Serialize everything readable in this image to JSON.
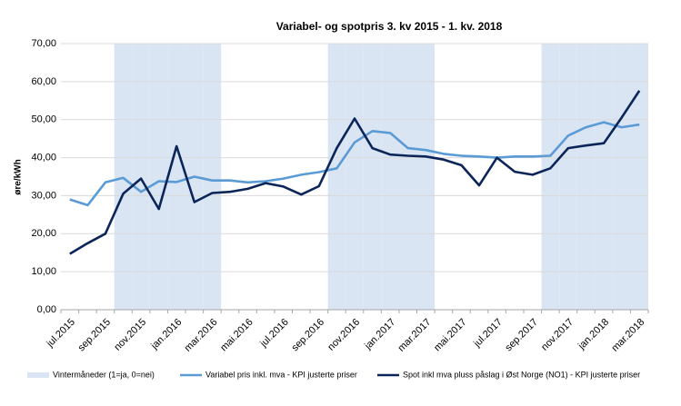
{
  "chart_data": {
    "type": "line",
    "title": "Variabel- og spotpris 3. kv 2015  - 1. kv. 2018",
    "y_label": "øre/kWh",
    "categories": [
      "jul.2015",
      null,
      "sep.2015",
      null,
      "nov.2015",
      null,
      "jan.2016",
      null,
      "mar.2016",
      null,
      "mai.2016",
      null,
      "jul.2016",
      null,
      "sep.2016",
      null,
      "nov.2016",
      null,
      "jan.2017",
      null,
      "mar.2017",
      null,
      "mai.2017",
      null,
      "jul.2017",
      null,
      "sep.2017",
      null,
      "nov.2017",
      null,
      "jan.2018",
      null,
      "mar.2018"
    ],
    "series": [
      {
        "name": "Vintermåneder (1=ja, 0=nei)",
        "type": "bar",
        "axis": "y2",
        "color": "#dae5f4",
        "values": [
          0,
          0,
          0,
          1,
          1,
          1,
          1,
          1,
          1,
          0,
          0,
          0,
          0,
          0,
          0,
          1,
          1,
          1,
          1,
          1,
          1,
          0,
          0,
          0,
          0,
          0,
          0,
          1,
          1,
          1,
          1,
          1,
          1
        ]
      },
      {
        "name": "Variabel pris inkl. mva - KPI justerte priser",
        "type": "line",
        "color": "#5b9bd5",
        "values": [
          29.0,
          27.5,
          33.5,
          34.7,
          31.0,
          33.8,
          33.6,
          35.0,
          34.0,
          34.0,
          33.5,
          33.8,
          34.5,
          35.5,
          36.2,
          37.2,
          44.0,
          47.0,
          46.5,
          42.5,
          42.0,
          41.0,
          40.5,
          40.3,
          40.0,
          40.3,
          40.3,
          40.5,
          45.8,
          48.0,
          49.3,
          48.0,
          48.7
        ]
      },
      {
        "name": "Spot inkl mva pluss påslag i Øst Norge (NO1) - KPI justerte priser",
        "type": "line",
        "color": "#0b2559",
        "values": [
          14.7,
          17.5,
          20.0,
          30.5,
          34.5,
          26.5,
          43.0,
          28.3,
          30.7,
          31.0,
          31.8,
          33.3,
          32.4,
          30.3,
          32.5,
          42.5,
          50.3,
          42.5,
          40.8,
          40.5,
          40.3,
          39.5,
          38.0,
          32.7,
          40.0,
          36.3,
          35.5,
          37.2,
          42.5,
          43.2,
          43.8,
          50.5,
          57.6
        ]
      }
    ],
    "ylim": [
      0,
      70
    ],
    "yticks": [
      {
        "value": 0,
        "label": "0,00"
      },
      {
        "value": 10,
        "label": "10,00"
      },
      {
        "value": 20,
        "label": "20,00"
      },
      {
        "value": 30,
        "label": "30,00"
      },
      {
        "value": 40,
        "label": "40,00"
      },
      {
        "value": 50,
        "label": "50,00"
      },
      {
        "value": 60,
        "label": "60,00"
      },
      {
        "value": 70,
        "label": "70,00"
      }
    ],
    "y2lim": [
      0,
      1
    ],
    "grid": true,
    "legend": "bottom"
  }
}
